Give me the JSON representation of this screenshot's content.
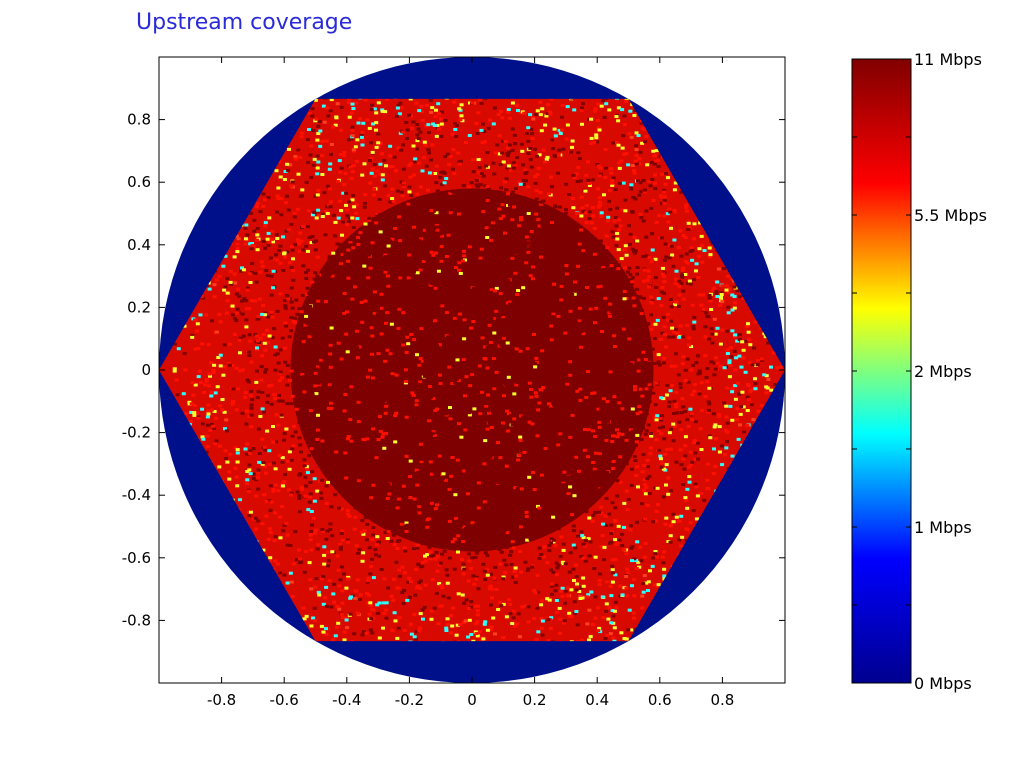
{
  "chart_data": {
    "type": "heatmap",
    "title": "Upstream coverage",
    "xlabel": "",
    "ylabel": "",
    "xlim": [
      -1,
      1
    ],
    "ylim": [
      -1,
      1
    ],
    "x_ticks": [
      -0.8,
      -0.6,
      -0.4,
      -0.2,
      0,
      0.2,
      0.4,
      0.6,
      0.8
    ],
    "y_ticks": [
      0.8,
      0.6,
      0.4,
      0.2,
      0,
      -0.2,
      -0.4,
      -0.6,
      -0.8
    ],
    "x_tick_labels": [
      "-0.8",
      "-0.6",
      "-0.4",
      "-0.2",
      "0",
      "0.2",
      "0.4",
      "0.6",
      "0.8"
    ],
    "y_tick_labels": [
      "0.8",
      "0.6",
      "0.4",
      "0.2",
      "0",
      "-0.2",
      "-0.4",
      "-0.6",
      "-0.8"
    ],
    "grid": false,
    "regions": {
      "outer_circle_radius": 1.0,
      "hexagon_circumradius": 1.0,
      "inner_core_radius": 0.58,
      "outer_value": "0 Mbps",
      "core_value": "11 Mbps"
    },
    "colorbar": {
      "labels": [
        {
          "text": "11 Mbps",
          "level": 1.0
        },
        {
          "text": "5.5 Mbps",
          "level": 0.5
        },
        {
          "text": "2 Mbps",
          "level": 0.0
        },
        {
          "text": "1 Mbps",
          "level": -0.5
        },
        {
          "text": "0 Mbps",
          "level": -1.0
        }
      ],
      "colors": [
        "#00008f",
        "#0000ff",
        "#00ffff",
        "#ffff00",
        "#ff0000",
        "#800000"
      ],
      "placement": "right"
    },
    "colors": {
      "outer": "#00108a",
      "core": "#7e0000",
      "speckle": [
        "#ff0f00",
        "#ffff30",
        "#30ffff",
        "#ff4020",
        "#d00000"
      ]
    }
  }
}
